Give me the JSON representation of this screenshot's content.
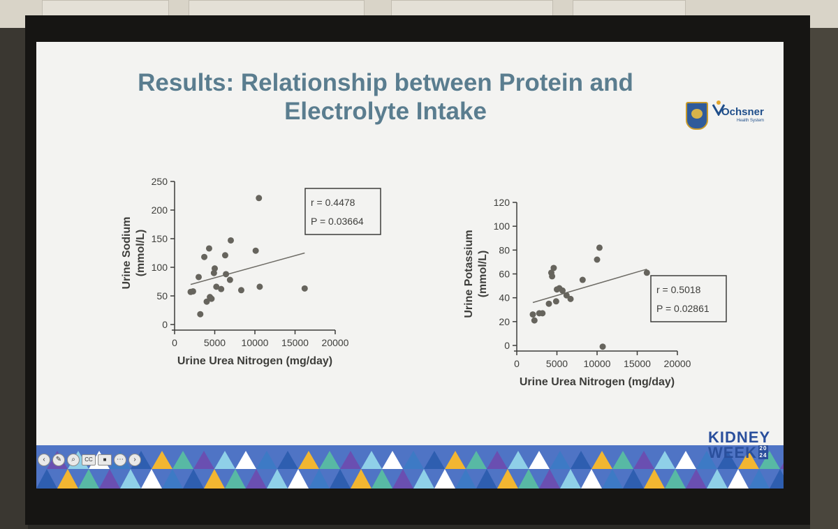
{
  "slide": {
    "title_line1": "Results: Relationship between Protein and",
    "title_line2": "Electrolyte Intake"
  },
  "logos": {
    "partner": "Ochsner",
    "partner_sub": "Health System"
  },
  "branding": {
    "kidney": "KIDNEY",
    "week": "WEEK",
    "year_top": "20",
    "year_bottom": "24"
  },
  "toolbar": {
    "icons": [
      "back-icon",
      "pen-icon",
      "zoom-icon",
      "captions-icon",
      "camera-icon",
      "more-icon",
      "forward-icon"
    ],
    "captions_label": "CC"
  },
  "colors": {
    "title": "#5a7d8f",
    "points": "#66645d",
    "kidney_week": "#2a4f9c"
  },
  "chart_data": [
    {
      "type": "scatter",
      "xlabel": "Urine Urea Nitrogen (mg/day)",
      "ylabel": "Urine Sodium\n(mmol/L)",
      "ylabel_line1": "Urine Sodium",
      "ylabel_line2": "(mmol/L)",
      "xlim": [
        0,
        20000
      ],
      "ylim": [
        0,
        250
      ],
      "x_ticks": [
        0,
        5000,
        10000,
        15000,
        20000
      ],
      "y_ticks": [
        0,
        50,
        100,
        150,
        200,
        250
      ],
      "x_tick_labels": [
        "0",
        "5000",
        "10000",
        "15000",
        "20000"
      ],
      "y_tick_labels": [
        "0",
        "50",
        "100",
        "150",
        "200",
        "250"
      ],
      "stat_r": "r = 0.4478",
      "stat_p": "P = 0.03664",
      "trend": {
        "x": [
          2000,
          16200
        ],
        "y": [
          70,
          125
        ]
      },
      "points": [
        {
          "x": 2000,
          "y": 57
        },
        {
          "x": 2300,
          "y": 58
        },
        {
          "x": 3000,
          "y": 83
        },
        {
          "x": 3200,
          "y": 18
        },
        {
          "x": 3700,
          "y": 118
        },
        {
          "x": 4000,
          "y": 40
        },
        {
          "x": 4300,
          "y": 133
        },
        {
          "x": 4400,
          "y": 48
        },
        {
          "x": 4600,
          "y": 45
        },
        {
          "x": 4900,
          "y": 90
        },
        {
          "x": 5000,
          "y": 98
        },
        {
          "x": 5200,
          "y": 66
        },
        {
          "x": 5800,
          "y": 62
        },
        {
          "x": 6300,
          "y": 121
        },
        {
          "x": 6400,
          "y": 88
        },
        {
          "x": 6900,
          "y": 78
        },
        {
          "x": 7000,
          "y": 147
        },
        {
          "x": 8300,
          "y": 60
        },
        {
          "x": 10100,
          "y": 129
        },
        {
          "x": 10600,
          "y": 66
        },
        {
          "x": 10500,
          "y": 221
        },
        {
          "x": 16200,
          "y": 63
        }
      ]
    },
    {
      "type": "scatter",
      "xlabel": "Urine Urea Nitrogen (mg/day)",
      "ylabel": "Urine Potassium\n(mmol/L)",
      "ylabel_line1": "Urine Potassium",
      "ylabel_line2": "(mmol/L)",
      "xlim": [
        0,
        20000
      ],
      "ylim": [
        0,
        120
      ],
      "x_ticks": [
        0,
        5000,
        10000,
        15000,
        20000
      ],
      "y_ticks": [
        0,
        20,
        40,
        60,
        80,
        100,
        120
      ],
      "x_tick_labels": [
        "0",
        "5000",
        "10000",
        "15000",
        "20000"
      ],
      "y_tick_labels": [
        "0",
        "20",
        "40",
        "60",
        "80",
        "100",
        "120"
      ],
      "stat_r": "r = 0.5018",
      "stat_p": "P = 0.02861",
      "trend": {
        "x": [
          2000,
          16200
        ],
        "y": [
          36,
          64
        ]
      },
      "points": [
        {
          "x": 2000,
          "y": 26
        },
        {
          "x": 2200,
          "y": 21
        },
        {
          "x": 2800,
          "y": 27
        },
        {
          "x": 3200,
          "y": 27
        },
        {
          "x": 4000,
          "y": 35
        },
        {
          "x": 4300,
          "y": 61
        },
        {
          "x": 4400,
          "y": 58
        },
        {
          "x": 4600,
          "y": 65
        },
        {
          "x": 4900,
          "y": 37
        },
        {
          "x": 5000,
          "y": 47
        },
        {
          "x": 5300,
          "y": 48
        },
        {
          "x": 5700,
          "y": 46
        },
        {
          "x": 6200,
          "y": 42
        },
        {
          "x": 6700,
          "y": 39
        },
        {
          "x": 8200,
          "y": 55
        },
        {
          "x": 10000,
          "y": 72
        },
        {
          "x": 10300,
          "y": 82
        },
        {
          "x": 10700,
          "y": -1
        },
        {
          "x": 16200,
          "y": 61
        }
      ]
    }
  ]
}
